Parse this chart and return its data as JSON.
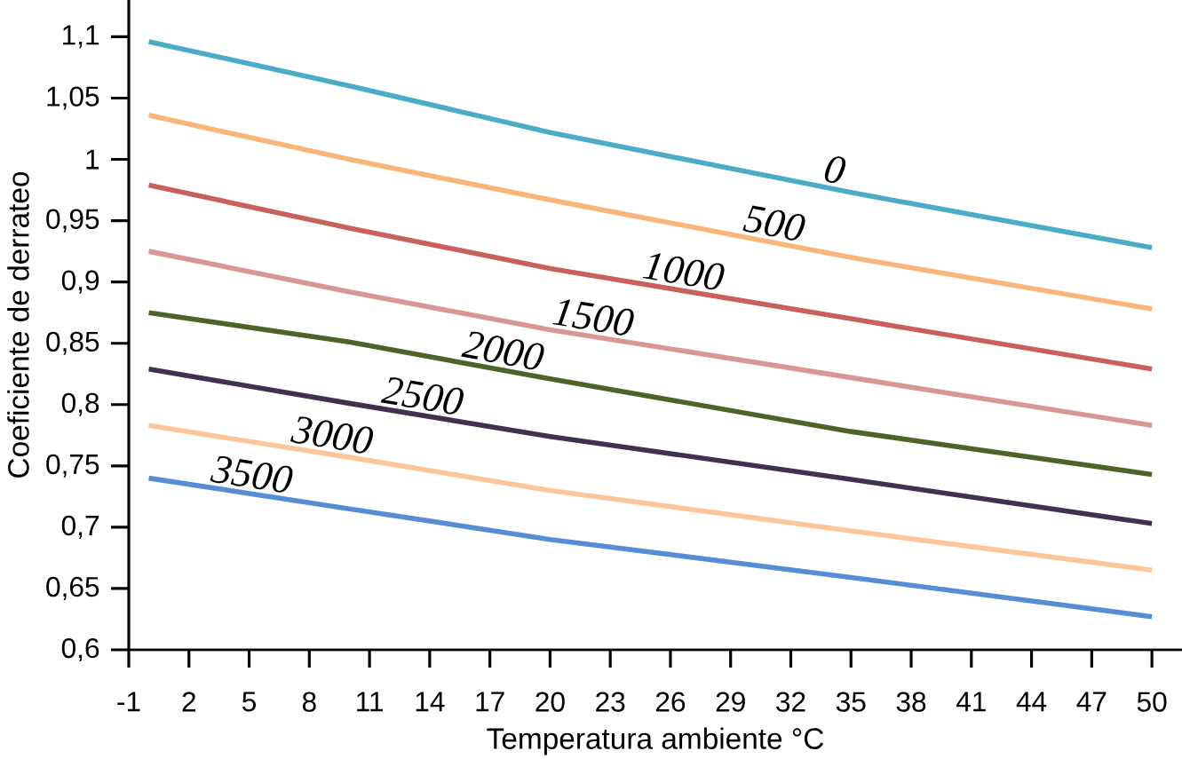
{
  "chart_data": {
    "type": "line",
    "xlabel": "Temperatura ambiente °C",
    "ylabel": "Coeficiente de derrateo",
    "x": [
      0,
      10,
      20,
      35,
      50
    ],
    "series": [
      {
        "name": "0",
        "color": "#4bacc6",
        "values": [
          1.096,
          1.06,
          1.022,
          0.973,
          0.928
        ]
      },
      {
        "name": "500",
        "color": "#fab57a",
        "values": [
          1.036,
          1.0,
          0.967,
          0.92,
          0.878
        ]
      },
      {
        "name": "1000",
        "color": "#c9605c",
        "values": [
          0.979,
          0.944,
          0.911,
          0.87,
          0.829
        ]
      },
      {
        "name": "1500",
        "color": "#d99694",
        "values": [
          0.925,
          0.892,
          0.861,
          0.822,
          0.783
        ]
      },
      {
        "name": "2000",
        "color": "#4f6228",
        "values": [
          0.875,
          0.851,
          0.821,
          0.778,
          0.743
        ]
      },
      {
        "name": "2500",
        "color": "#403151",
        "values": [
          0.829,
          0.801,
          0.774,
          0.739,
          0.703
        ]
      },
      {
        "name": "3000",
        "color": "#fcc59a",
        "values": [
          0.783,
          0.757,
          0.73,
          0.697,
          0.665
        ]
      },
      {
        "name": "3500",
        "color": "#558ed5",
        "values": [
          0.74,
          0.715,
          0.69,
          0.659,
          0.627
        ]
      }
    ],
    "xlim": [
      -1,
      51.5
    ],
    "ylim": [
      0.6,
      1.13
    ],
    "xticks": [
      -1,
      2,
      5,
      8,
      11,
      14,
      17,
      20,
      23,
      26,
      29,
      32,
      35,
      38,
      41,
      44,
      47,
      50
    ],
    "yticks": [
      {
        "value": 0.6,
        "label": "0,6"
      },
      {
        "value": 0.65,
        "label": "0,65"
      },
      {
        "value": 0.7,
        "label": "0,7"
      },
      {
        "value": 0.75,
        "label": "0,75"
      },
      {
        "value": 0.8,
        "label": "0,8"
      },
      {
        "value": 0.85,
        "label": "0,85"
      },
      {
        "value": 0.9,
        "label": "0,9"
      },
      {
        "value": 0.95,
        "label": "0,95"
      },
      {
        "value": 1,
        "label": "1"
      },
      {
        "value": 1.05,
        "label": "1,05"
      },
      {
        "value": 1.1,
        "label": "1,1"
      }
    ],
    "marker": "none"
  }
}
